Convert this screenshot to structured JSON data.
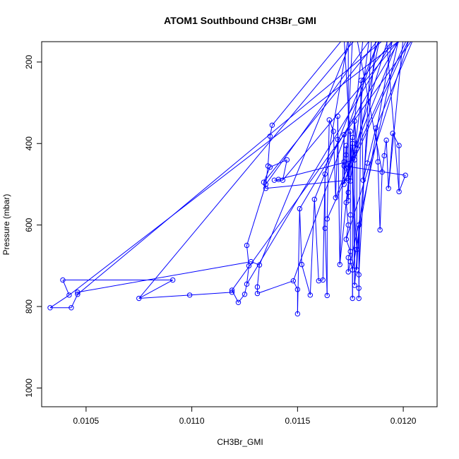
{
  "chart_data": {
    "type": "scatter",
    "title": "ATOM1 Southbound CH3Br_GMI",
    "xlabel": "CH3Br_GMI",
    "ylabel": "Pressure (mbar)",
    "xlim": [
      0.01029,
      0.01216
    ],
    "ylim": [
      1046,
      150
    ],
    "y_axis_reversed": true,
    "x_ticks": [
      0.0105,
      0.011,
      0.0115,
      0.012
    ],
    "x_tick_labels": [
      "0.0105",
      "0.0110",
      "0.0115",
      "0.0120"
    ],
    "y_ticks": [
      200,
      400,
      600,
      800,
      1000
    ],
    "y_tick_labels": [
      "200",
      "400",
      "600",
      "800",
      "1000"
    ],
    "grid": false,
    "legend": "none",
    "series": [
      {
        "color": "#0000ff",
        "marker": "open-circle",
        "style": "line+points",
        "points": [
          [
            0.01138,
            355
          ],
          [
            0.01137,
            382
          ],
          [
            0.01136,
            455
          ],
          [
            0.01135,
            500
          ],
          [
            0.01126,
            650
          ],
          [
            0.01127,
            700
          ],
          [
            0.01126,
            745
          ],
          [
            0.01125,
            770
          ],
          [
            0.01122,
            790
          ],
          [
            0.01119,
            760
          ],
          [
            0.01119,
            765
          ],
          [
            0.01099,
            772
          ],
          [
            0.01075,
            780
          ],
          [
            0.01091,
            735
          ],
          [
            0.01039,
            735
          ],
          [
            0.01042,
            772
          ],
          [
            0.01033,
            803
          ],
          [
            0.01043,
            803
          ],
          [
            0.01046,
            770
          ],
          [
            0.01046,
            765
          ],
          [
            0.01128,
            690
          ],
          [
            0.01132,
            698
          ],
          [
            0.01131,
            752
          ],
          [
            0.01131,
            768
          ],
          [
            0.01148,
            737
          ],
          [
            0.0115,
            758
          ],
          [
            0.0115,
            818
          ],
          [
            0.01151,
            560
          ],
          [
            0.01152,
            697
          ],
          [
            0.01156,
            772
          ],
          [
            0.01158,
            537
          ],
          [
            0.0116,
            737
          ],
          [
            0.01162,
            735
          ],
          [
            0.01163,
            475
          ],
          [
            0.01163,
            608
          ],
          [
            0.01164,
            773
          ],
          [
            0.01164,
            585
          ],
          [
            0.01165,
            342
          ],
          [
            0.01167,
            370
          ],
          [
            0.01168,
            533
          ],
          [
            0.01169,
            390
          ],
          [
            0.01169,
            333
          ],
          [
            0.0117,
            697
          ],
          [
            0.01172,
            378
          ],
          [
            0.01172,
            445
          ],
          [
            0.01172,
            500
          ],
          [
            0.01173,
            405
          ],
          [
            0.01173,
            428
          ],
          [
            0.01174,
            460
          ],
          [
            0.01174,
            540
          ],
          [
            0.01175,
            370
          ],
          [
            0.01175,
            492
          ],
          [
            0.01175,
            575
          ],
          [
            0.01175,
            690
          ],
          [
            0.01176,
            710
          ],
          [
            0.01176,
            780
          ],
          [
            0.01176,
            385
          ],
          [
            0.01177,
            748
          ],
          [
            0.01177,
            345
          ],
          [
            0.01178,
            412
          ],
          [
            0.01178,
            660
          ],
          [
            0.01178,
            710
          ],
          [
            0.01179,
            600
          ],
          [
            0.01179,
            722
          ],
          [
            0.01179,
            755
          ],
          [
            0.01179,
            780
          ],
          [
            0.0118,
            245
          ],
          [
            0.01181,
            490
          ],
          [
            0.01183,
            448
          ],
          [
            0.01187,
            362
          ],
          [
            0.01188,
            445
          ],
          [
            0.01189,
            612
          ],
          [
            0.0119,
            470
          ],
          [
            0.01191,
            430
          ],
          [
            0.01192,
            392
          ],
          [
            0.01193,
            510
          ],
          [
            0.01195,
            375
          ],
          [
            0.01198,
            405
          ],
          [
            0.01198,
            518
          ],
          [
            0.01201,
            478
          ],
          [
            0.01172,
            455
          ],
          [
            0.01173,
            460
          ],
          [
            0.01174,
            485
          ],
          [
            0.01176,
            400
          ],
          [
            0.01177,
            440
          ],
          [
            0.01141,
            488
          ],
          [
            0.01139,
            490
          ],
          [
            0.01143,
            490
          ],
          [
            0.01145,
            440
          ],
          [
            0.01137,
            458
          ],
          [
            0.01134,
            495
          ],
          [
            0.01135,
            510
          ],
          [
            0.01174,
            490
          ],
          [
            0.01174,
            520
          ],
          [
            0.01173,
            545
          ],
          [
            0.01174,
            600
          ],
          [
            0.01173,
            635
          ],
          [
            0.01175,
            665
          ],
          [
            0.01174,
            680
          ],
          [
            0.01174,
            715
          ]
        ]
      }
    ]
  }
}
